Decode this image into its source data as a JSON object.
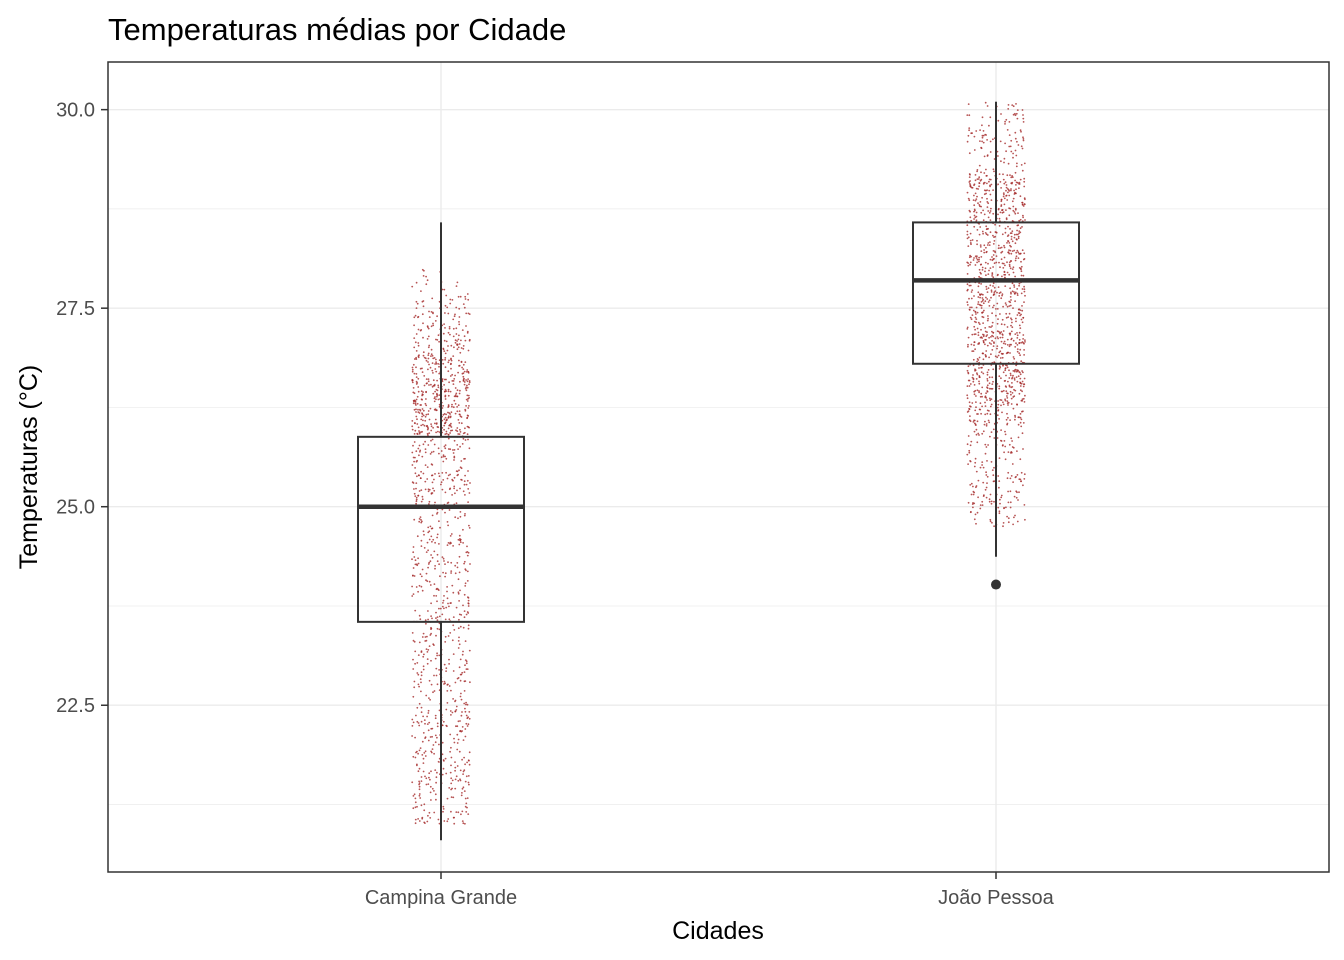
{
  "chart_data": {
    "type": "boxplot",
    "title": "Temperaturas médias por Cidade",
    "xlabel": "Cidades",
    "ylabel": "Temperaturas (°C)",
    "categories": [
      "Campina Grande",
      "João Pessoa"
    ],
    "ylim": [
      20.4,
      30.6
    ],
    "y_ticks": [
      22.5,
      25.0,
      27.5,
      30.0
    ],
    "y_tick_labels": [
      "22.5",
      "25.0",
      "27.5",
      "30.0"
    ],
    "grid": true,
    "jitter_color": "#a52a2a",
    "boxes": [
      {
        "category": "Campina Grande",
        "whisker_low": 20.8,
        "q1": 23.55,
        "median": 25.0,
        "q3": 25.88,
        "whisker_high": 28.58,
        "outliers": []
      },
      {
        "category": "João Pessoa",
        "whisker_low": 24.37,
        "q1": 26.8,
        "median": 27.85,
        "q3": 28.58,
        "whisker_high": 30.1,
        "outliers": [
          24.02
        ]
      }
    ]
  }
}
